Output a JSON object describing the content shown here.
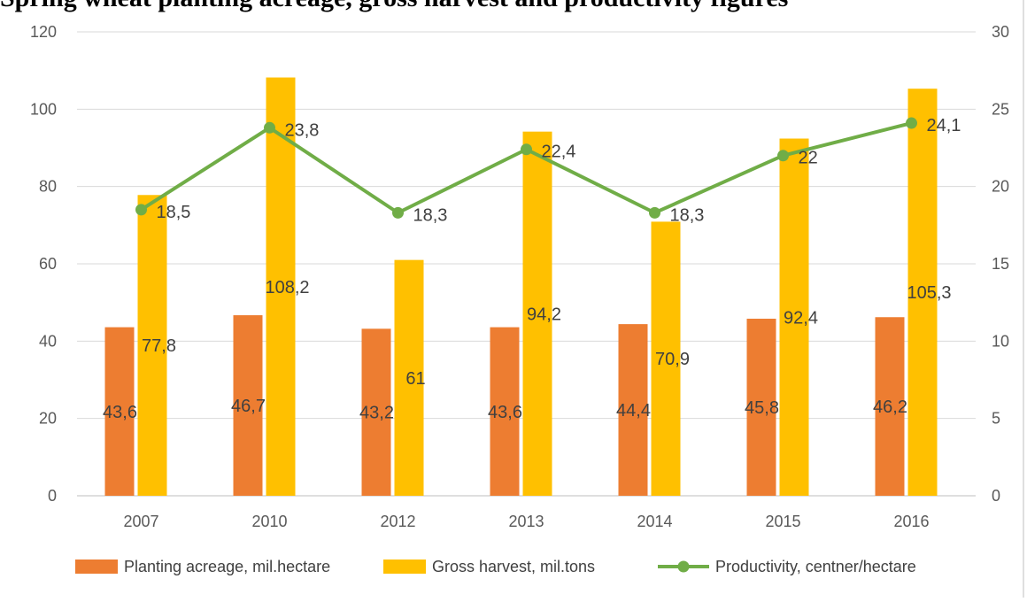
{
  "chart_data": {
    "type": "bar",
    "title": "Spring wheat planting acreage, gross harvest and productivity figures",
    "categories": [
      "2007",
      "2010",
      "2012",
      "2013",
      "2014",
      "2015",
      "2016"
    ],
    "series": [
      {
        "name": "Planting acreage, mil.hectare",
        "type": "bar",
        "axis": "left",
        "values": [
          43.6,
          46.7,
          43.2,
          43.6,
          44.4,
          45.8,
          46.2
        ],
        "labels": [
          "43,6",
          "46,7",
          "43,2",
          "43,6",
          "44,4",
          "45,8",
          "46,2"
        ],
        "color": "#ED7D31"
      },
      {
        "name": "Gross harvest, mil.tons",
        "type": "bar",
        "axis": "left",
        "values": [
          77.8,
          108.2,
          61,
          94.2,
          70.9,
          92.4,
          105.3
        ],
        "labels": [
          "77,8",
          "108,2",
          "61",
          "94,2",
          "70,9",
          "92,4",
          "105,3"
        ],
        "color": "#FFC000"
      },
      {
        "name": "Productivity, centner/hectare",
        "type": "line",
        "axis": "right",
        "values": [
          18.5,
          23.8,
          18.3,
          22.4,
          18.3,
          22,
          24.1
        ],
        "labels": [
          "18,5",
          "23,8",
          "18,3",
          "22,4",
          "18,3",
          "22",
          "24,1"
        ],
        "color": "#70AD47"
      }
    ],
    "ylim_left": [
      0,
      120
    ],
    "yticks_left": [
      "0",
      "20",
      "40",
      "60",
      "80",
      "100",
      "120"
    ],
    "ylim_right": [
      0,
      30
    ],
    "yticks_right": [
      "0",
      "5",
      "10",
      "15",
      "20",
      "25",
      "30"
    ],
    "grid": true,
    "legend_position": "bottom"
  }
}
